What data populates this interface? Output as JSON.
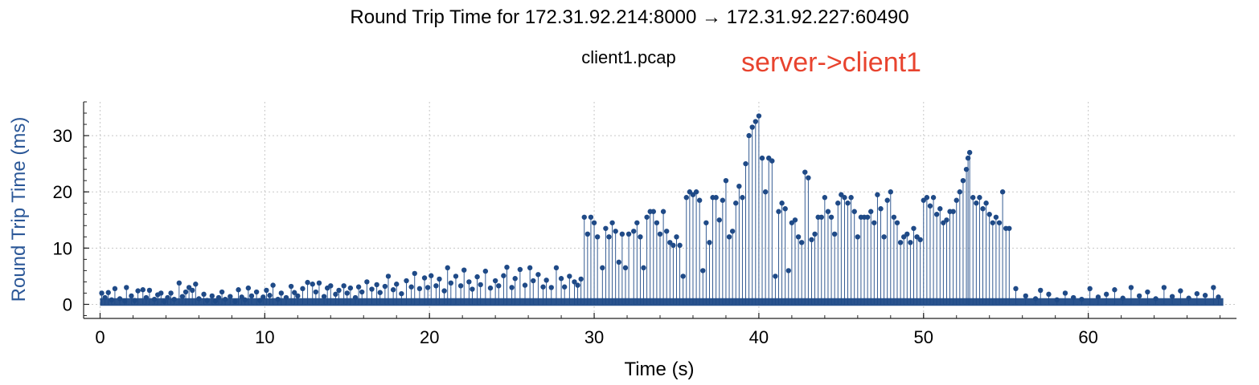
{
  "chart_data": {
    "type": "scatter",
    "style": "stem",
    "title": "Round Trip Time for 172.31.92.214:8000 → 172.31.92.227:60490",
    "subtitle": "client1.pcap",
    "annotation": "server->client1",
    "xlabel": "Time (s)",
    "ylabel": "Round Trip Time (ms)",
    "xlim": [
      -1,
      69
    ],
    "ylim": [
      -2.5,
      36
    ],
    "xticks": [
      0,
      10,
      20,
      30,
      40,
      50,
      60
    ],
    "yticks": [
      0,
      10,
      20,
      30
    ],
    "x_minor_step": 2,
    "y_minor_step": 2,
    "grid": true,
    "series": [
      {
        "values": [
          [
            0.1,
            2.0
          ],
          [
            0.3,
            1.2
          ],
          [
            0.5,
            2.1
          ],
          [
            0.7,
            0.8
          ],
          [
            0.9,
            2.8
          ],
          [
            1.2,
            1.0
          ],
          [
            1.5,
            0.6
          ],
          [
            1.6,
            3.0
          ],
          [
            1.9,
            1.5
          ],
          [
            2.1,
            0.7
          ],
          [
            2.3,
            2.4
          ],
          [
            2.6,
            2.6
          ],
          [
            2.8,
            1.2
          ],
          [
            3.0,
            2.5
          ],
          [
            3.3,
            0.9
          ],
          [
            3.5,
            1.7
          ],
          [
            3.7,
            2.0
          ],
          [
            3.9,
            0.5
          ],
          [
            4.1,
            1.2
          ],
          [
            4.3,
            2.0
          ],
          [
            4.5,
            0.9
          ],
          [
            4.8,
            3.8
          ],
          [
            5.0,
            1.4
          ],
          [
            5.2,
            2.2
          ],
          [
            5.4,
            3.0
          ],
          [
            5.6,
            2.5
          ],
          [
            5.8,
            3.6
          ],
          [
            6.0,
            1.0
          ],
          [
            6.3,
            1.8
          ],
          [
            6.5,
            0.7
          ],
          [
            6.8,
            1.5
          ],
          [
            7.0,
            0.6
          ],
          [
            7.2,
            1.2
          ],
          [
            7.4,
            2.2
          ],
          [
            7.6,
            0.9
          ],
          [
            7.9,
            1.4
          ],
          [
            8.2,
            0.5
          ],
          [
            8.4,
            2.6
          ],
          [
            8.6,
            1.3
          ],
          [
            8.8,
            0.8
          ],
          [
            9.0,
            2.9
          ],
          [
            9.2,
            1.5
          ],
          [
            9.5,
            2.2
          ],
          [
            9.7,
            0.7
          ],
          [
            9.9,
            1.3
          ],
          [
            10.1,
            2.5
          ],
          [
            10.3,
            1.6
          ],
          [
            10.5,
            3.4
          ],
          [
            10.8,
            0.9
          ],
          [
            11.0,
            2.0
          ],
          [
            11.3,
            1.2
          ],
          [
            11.6,
            3.2
          ],
          [
            11.8,
            2.1
          ],
          [
            12.0,
            1.5
          ],
          [
            12.3,
            2.8
          ],
          [
            12.6,
            3.9
          ],
          [
            12.9,
            3.6
          ],
          [
            13.1,
            2.2
          ],
          [
            13.3,
            3.8
          ],
          [
            13.6,
            1.4
          ],
          [
            13.8,
            2.9
          ],
          [
            14.0,
            3.3
          ],
          [
            14.3,
            1.8
          ],
          [
            14.5,
            2.5
          ],
          [
            14.8,
            3.3
          ],
          [
            15.0,
            2.0
          ],
          [
            15.2,
            2.9
          ],
          [
            15.5,
            1.2
          ],
          [
            15.7,
            3.1
          ],
          [
            15.9,
            2.2
          ],
          [
            16.2,
            4.0
          ],
          [
            16.5,
            2.7
          ],
          [
            16.8,
            3.5
          ],
          [
            17.0,
            2.1
          ],
          [
            17.3,
            3.2
          ],
          [
            17.5,
            5.0
          ],
          [
            17.8,
            2.6
          ],
          [
            18.0,
            3.6
          ],
          [
            18.3,
            1.9
          ],
          [
            18.6,
            4.2
          ],
          [
            18.9,
            3.1
          ],
          [
            19.1,
            5.5
          ],
          [
            19.4,
            2.8
          ],
          [
            19.7,
            4.7
          ],
          [
            19.9,
            3.0
          ],
          [
            20.1,
            5.1
          ],
          [
            20.4,
            3.3
          ],
          [
            20.6,
            4.5
          ],
          [
            20.9,
            2.4
          ],
          [
            21.1,
            6.5
          ],
          [
            21.3,
            3.8
          ],
          [
            21.6,
            5.0
          ],
          [
            21.9,
            3.3
          ],
          [
            22.1,
            6.1
          ],
          [
            22.4,
            4.0
          ],
          [
            22.6,
            2.7
          ],
          [
            22.9,
            4.9
          ],
          [
            23.1,
            3.5
          ],
          [
            23.4,
            5.9
          ],
          [
            23.7,
            2.9
          ],
          [
            24.0,
            4.2
          ],
          [
            24.2,
            3.3
          ],
          [
            24.5,
            5.1
          ],
          [
            24.7,
            6.6
          ],
          [
            25.0,
            3.0
          ],
          [
            25.2,
            4.6
          ],
          [
            25.5,
            6.2
          ],
          [
            25.8,
            3.4
          ],
          [
            26.1,
            6.5
          ],
          [
            26.3,
            4.2
          ],
          [
            26.6,
            5.3
          ],
          [
            26.9,
            3.1
          ],
          [
            27.1,
            4.3
          ],
          [
            27.4,
            3.0
          ],
          [
            27.7,
            6.5
          ],
          [
            28.0,
            4.6
          ],
          [
            28.2,
            3.1
          ],
          [
            28.5,
            5.0
          ],
          [
            28.8,
            4.0
          ],
          [
            29.0,
            3.4
          ],
          [
            29.2,
            4.5
          ],
          [
            29.4,
            15.5
          ],
          [
            29.6,
            12.5
          ],
          [
            29.8,
            15.5
          ],
          [
            30.0,
            14.5
          ],
          [
            30.2,
            12.0
          ],
          [
            30.5,
            6.5
          ],
          [
            30.7,
            13.5
          ],
          [
            30.9,
            12.0
          ],
          [
            31.1,
            14.5
          ],
          [
            31.3,
            13.0
          ],
          [
            31.5,
            7.5
          ],
          [
            31.7,
            12.5
          ],
          [
            31.9,
            6.5
          ],
          [
            32.1,
            12.5
          ],
          [
            32.4,
            13.0
          ],
          [
            32.6,
            14.5
          ],
          [
            32.8,
            12.0
          ],
          [
            33.0,
            6.5
          ],
          [
            33.2,
            15.5
          ],
          [
            33.4,
            16.5
          ],
          [
            33.6,
            16.5
          ],
          [
            33.8,
            14.5
          ],
          [
            34.0,
            12.5
          ],
          [
            34.2,
            16.5
          ],
          [
            34.4,
            13.0
          ],
          [
            34.6,
            11.0
          ],
          [
            34.8,
            10.5
          ],
          [
            35.0,
            12.0
          ],
          [
            35.2,
            10.5
          ],
          [
            35.4,
            5.0
          ],
          [
            35.6,
            19.0
          ],
          [
            35.8,
            20.0
          ],
          [
            36.0,
            19.5
          ],
          [
            36.2,
            20.0
          ],
          [
            36.4,
            18.5
          ],
          [
            36.6,
            6.0
          ],
          [
            36.8,
            14.5
          ],
          [
            37.0,
            11.0
          ],
          [
            37.2,
            19.0
          ],
          [
            37.4,
            19.0
          ],
          [
            37.6,
            15.0
          ],
          [
            37.8,
            18.5
          ],
          [
            38.0,
            22.0
          ],
          [
            38.2,
            12.0
          ],
          [
            38.4,
            13.0
          ],
          [
            38.6,
            18.0
          ],
          [
            38.8,
            21.0
          ],
          [
            39.0,
            19.0
          ],
          [
            39.2,
            25.0
          ],
          [
            39.4,
            30.0
          ],
          [
            39.6,
            31.5
          ],
          [
            39.8,
            32.5
          ],
          [
            40.0,
            33.5
          ],
          [
            40.2,
            26.0
          ],
          [
            40.4,
            20.0
          ],
          [
            40.6,
            26.0
          ],
          [
            40.8,
            25.5
          ],
          [
            41.0,
            5.0
          ],
          [
            41.2,
            16.5
          ],
          [
            41.4,
            18.0
          ],
          [
            41.6,
            17.0
          ],
          [
            41.8,
            6.0
          ],
          [
            42.0,
            14.5
          ],
          [
            42.2,
            15.0
          ],
          [
            42.4,
            12.0
          ],
          [
            42.6,
            11.0
          ],
          [
            42.8,
            23.5
          ],
          [
            43.0,
            22.5
          ],
          [
            43.2,
            11.5
          ],
          [
            43.4,
            12.5
          ],
          [
            43.6,
            15.5
          ],
          [
            43.8,
            15.5
          ],
          [
            44.0,
            19.0
          ],
          [
            44.2,
            16.5
          ],
          [
            44.4,
            15.5
          ],
          [
            44.6,
            12.5
          ],
          [
            44.8,
            18.0
          ],
          [
            45.0,
            19.5
          ],
          [
            45.2,
            19.0
          ],
          [
            45.4,
            18.0
          ],
          [
            45.6,
            19.0
          ],
          [
            45.8,
            16.5
          ],
          [
            46.0,
            12.0
          ],
          [
            46.2,
            15.5
          ],
          [
            46.4,
            15.5
          ],
          [
            46.6,
            15.5
          ],
          [
            46.8,
            16.5
          ],
          [
            47.0,
            14.5
          ],
          [
            47.2,
            19.5
          ],
          [
            47.4,
            17.0
          ],
          [
            47.6,
            12.0
          ],
          [
            47.8,
            18.5
          ],
          [
            48.0,
            20.0
          ],
          [
            48.2,
            15.5
          ],
          [
            48.4,
            14.5
          ],
          [
            48.6,
            11.0
          ],
          [
            48.8,
            12.0
          ],
          [
            49.0,
            12.5
          ],
          [
            49.2,
            11.0
          ],
          [
            49.4,
            13.5
          ],
          [
            49.6,
            12.0
          ],
          [
            49.8,
            11.5
          ],
          [
            50.0,
            18.5
          ],
          [
            50.2,
            19.0
          ],
          [
            50.4,
            17.5
          ],
          [
            50.6,
            19.0
          ],
          [
            50.8,
            16.0
          ],
          [
            51.0,
            17.0
          ],
          [
            51.2,
            14.5
          ],
          [
            51.4,
            15.0
          ],
          [
            51.6,
            16.5
          ],
          [
            51.8,
            16.5
          ],
          [
            52.0,
            18.5
          ],
          [
            52.2,
            20.0
          ],
          [
            52.4,
            22.0
          ],
          [
            52.6,
            24.0
          ],
          [
            52.7,
            26.0
          ],
          [
            52.8,
            27.0
          ],
          [
            53.0,
            19.0
          ],
          [
            53.2,
            18.0
          ],
          [
            53.4,
            19.0
          ],
          [
            53.6,
            17.0
          ],
          [
            53.8,
            18.0
          ],
          [
            54.0,
            16.0
          ],
          [
            54.2,
            14.5
          ],
          [
            54.4,
            15.5
          ],
          [
            54.6,
            14.5
          ],
          [
            54.8,
            20.0
          ],
          [
            55.0,
            13.5
          ],
          [
            55.2,
            13.5
          ],
          [
            55.6,
            2.8
          ],
          [
            56.2,
            1.5
          ],
          [
            56.8,
            1.0
          ],
          [
            57.1,
            2.5
          ],
          [
            57.6,
            1.8
          ],
          [
            58.1,
            0.8
          ],
          [
            58.6,
            2.0
          ],
          [
            59.1,
            1.2
          ],
          [
            59.6,
            0.9
          ],
          [
            60.1,
            2.8
          ],
          [
            60.6,
            1.3
          ],
          [
            61.1,
            1.8
          ],
          [
            61.6,
            2.6
          ],
          [
            62.1,
            1.1
          ],
          [
            62.6,
            3.0
          ],
          [
            63.1,
            1.5
          ],
          [
            63.6,
            2.2
          ],
          [
            64.1,
            1.0
          ],
          [
            64.6,
            3.0
          ],
          [
            65.1,
            1.4
          ],
          [
            65.6,
            2.4
          ],
          [
            66.1,
            1.1
          ],
          [
            66.6,
            1.9
          ],
          [
            67.1,
            1.6
          ],
          [
            67.6,
            3.0
          ],
          [
            67.9,
            1.3
          ]
        ]
      }
    ]
  },
  "colors": {
    "series": "#1f4a87",
    "annotation": "#e8432e",
    "ylabel": "#2b5797",
    "tick_label": "#000000",
    "grid": "#c8c8c8"
  }
}
